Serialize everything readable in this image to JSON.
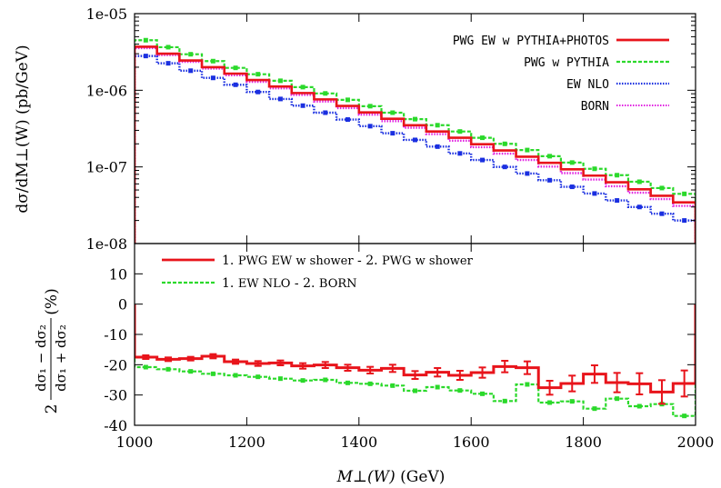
{
  "chart_data": [
    {
      "type": "line",
      "scale": "log",
      "ylabel": "dσ/dM⊥(W) (pb/GeV)",
      "ylim": [
        1e-08,
        1e-05
      ],
      "xlim": [
        1000,
        2000
      ],
      "yticks": [
        {
          "value": 1e-08,
          "label": "1e-08"
        },
        {
          "value": 1e-07,
          "label": "1e-07"
        },
        {
          "value": 1e-06,
          "label": "1e-06"
        },
        {
          "value": 1e-05,
          "label": "1e-05"
        }
      ],
      "legend_position": "top-right",
      "bin_edges": [
        1000,
        1040,
        1080,
        1120,
        1160,
        1200,
        1240,
        1280,
        1320,
        1360,
        1400,
        1440,
        1480,
        1520,
        1560,
        1600,
        1640,
        1680,
        1720,
        1760,
        1800,
        1840,
        1880,
        1920,
        1960,
        2000
      ],
      "series": [
        {
          "name": "PWG EW w PYTHIA+PHOTOS",
          "color": "#e8141b",
          "style": "solid",
          "markers": false,
          "values": [
            3.7e-06,
            3e-06,
            2.45e-06,
            2e-06,
            1.65e-06,
            1.36e-06,
            1.12e-06,
            9.2e-07,
            7.6e-07,
            6.25e-07,
            5.15e-07,
            4.25e-07,
            3.5e-07,
            2.9e-07,
            2.4e-07,
            1.98e-07,
            1.64e-07,
            1.36e-07,
            1.13e-07,
            9.3e-08,
            7.7e-08,
            6.3e-08,
            5.1e-08,
            4.2e-08,
            3.45e-08
          ]
        },
        {
          "name": "PWG w PYTHIA",
          "color": "#2bd92b",
          "style": "dashed",
          "markers": true,
          "values": [
            4.5e-06,
            3.65e-06,
            2.95e-06,
            2.4e-06,
            1.96e-06,
            1.62e-06,
            1.33e-06,
            1.1e-06,
            9.1e-07,
            7.5e-07,
            6.2e-07,
            5.1e-07,
            4.2e-07,
            3.5e-07,
            2.9e-07,
            2.4e-07,
            2e-07,
            1.66e-07,
            1.38e-07,
            1.14e-07,
            9.45e-08,
            7.8e-08,
            6.4e-08,
            5.3e-08,
            4.45e-08
          ]
        },
        {
          "name": "EW NLO",
          "color": "#1a2fe0",
          "style": "dotted",
          "markers": true,
          "values": [
            2.8e-06,
            2.25e-06,
            1.8e-06,
            1.45e-06,
            1.18e-06,
            9.5e-07,
            7.7e-07,
            6.3e-07,
            5.1e-07,
            4.15e-07,
            3.4e-07,
            2.75e-07,
            2.25e-07,
            1.84e-07,
            1.5e-07,
            1.23e-07,
            1e-07,
            8.2e-08,
            6.7e-08,
            5.5e-08,
            4.5e-08,
            3.65e-08,
            3e-08,
            2.45e-08,
            2e-08
          ]
        },
        {
          "name": "BORN",
          "color": "#e020e0",
          "style": "dotted",
          "markers": false,
          "values": [
            3.55e-06,
            2.88e-06,
            2.35e-06,
            1.92e-06,
            1.57e-06,
            1.29e-06,
            1.06e-06,
            8.7e-07,
            7.15e-07,
            5.85e-07,
            4.8e-07,
            3.95e-07,
            3.25e-07,
            2.68e-07,
            2.2e-07,
            1.81e-07,
            1.49e-07,
            1.23e-07,
            1.01e-07,
            8.3e-08,
            6.85e-08,
            5.6e-08,
            4.6e-08,
            3.8e-08,
            3.1e-08
          ]
        }
      ]
    },
    {
      "type": "line",
      "ylabel_numerator": "dσ₁ − dσ₂",
      "ylabel_denominator": "dσ₁ + dσ₂",
      "ylabel_prefix": "2",
      "ylabel_suffix": "(%)",
      "xlabel_var": "M⊥(W)",
      "xlabel_unit": "(GeV)",
      "ylim": [
        -40,
        20
      ],
      "xlim": [
        1000,
        2000
      ],
      "yticks": [
        -40,
        -30,
        -20,
        -10,
        0,
        10
      ],
      "xticks": [
        1000,
        1200,
        1400,
        1600,
        1800,
        2000
      ],
      "legend_position": "top-left",
      "bin_edges": [
        1000,
        1040,
        1080,
        1120,
        1160,
        1200,
        1240,
        1280,
        1320,
        1360,
        1400,
        1440,
        1480,
        1520,
        1560,
        1600,
        1640,
        1680,
        1720,
        1760,
        1800,
        1840,
        1880,
        1920,
        1960,
        2000
      ],
      "series": [
        {
          "name_prefix": "1.",
          "name_a": "PWG EW w shower",
          "name_sep": " - 2.",
          "name_b": "PWG w shower",
          "color": "#e8141b",
          "style": "solid",
          "markers": false,
          "values": [
            -17.5,
            -18.2,
            -18.0,
            -17.2,
            -19.0,
            -19.6,
            -19.4,
            -20.4,
            -20.1,
            -21.0,
            -21.8,
            -21.2,
            -23.4,
            -22.5,
            -23.5,
            -22.6,
            -20.6,
            -21.0,
            -27.6,
            -26.2,
            -23.1,
            -25.9,
            -26.3,
            -29.0,
            -26.2
          ],
          "errors": [
            0.6,
            0.6,
            0.6,
            0.7,
            0.7,
            0.8,
            0.8,
            0.9,
            1.0,
            1.0,
            1.1,
            1.2,
            1.3,
            1.4,
            1.5,
            1.7,
            1.9,
            2.1,
            2.3,
            2.6,
            2.9,
            3.2,
            3.5,
            3.9,
            4.3
          ]
        },
        {
          "name_prefix": "1.",
          "name_a": "EW NLO",
          "name_sep": " - 2.",
          "name_b": "BORN",
          "color": "#2bd92b",
          "style": "dashed",
          "markers": true,
          "values": [
            -20.8,
            -21.5,
            -22.2,
            -23.0,
            -23.5,
            -24.0,
            -24.6,
            -25.2,
            -25.0,
            -26.0,
            -26.3,
            -26.9,
            -28.6,
            -27.4,
            -28.5,
            -29.6,
            -32.0,
            -26.5,
            -32.5,
            -32.1,
            -34.5,
            -31.2,
            -33.7,
            -33.0,
            -36.9
          ]
        }
      ]
    }
  ]
}
